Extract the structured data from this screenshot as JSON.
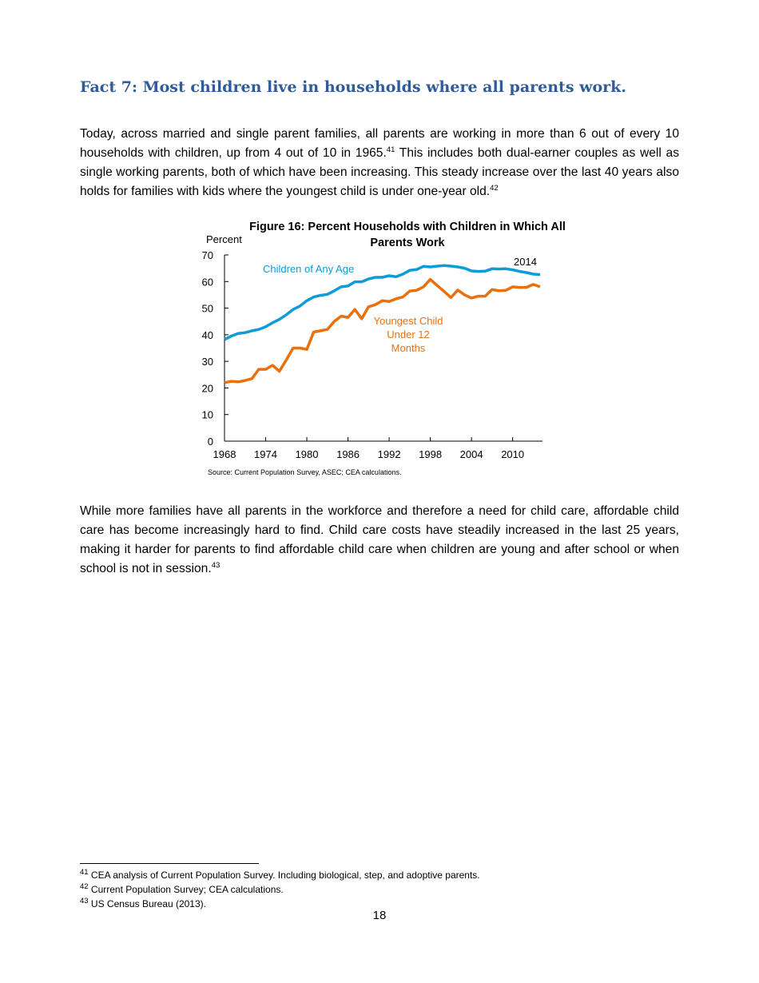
{
  "heading": "Fact 7: Most children live in households where all parents work.",
  "para1": {
    "text": "Today, across married and single parent families, all parents are working in more than 6 out of every 10 households with children, up from 4 out of 10 in 1965.",
    "ref1": "41",
    "text2": " This includes both dual-earner couples as well as single working parents, both of which have been increasing. This steady increase over the last 40 years also holds for families with kids where the youngest child is under one-year old.",
    "ref2": "42"
  },
  "para2": {
    "text": "While more families have all parents in the workforce and therefore a need for child care, affordable child care has become increasingly hard to find. Child care costs have steadily increased in the last 25 years, making it harder for parents to find affordable child care when children are young and after school or when school is not in session.",
    "ref": "43"
  },
  "chart_data": {
    "type": "line",
    "title": "Figure 16: Percent Households with Children in Which All Parents Work",
    "ylabel": "Percent",
    "ylim": [
      0,
      70
    ],
    "yticks": [
      0,
      10,
      20,
      30,
      40,
      50,
      60,
      70
    ],
    "xlim": [
      1968,
      2014
    ],
    "xticks": [
      1968,
      1974,
      1980,
      1986,
      1992,
      1998,
      2004,
      2010
    ],
    "x_start": 1968,
    "annotation": "2014",
    "series": [
      {
        "name": "Children of Any Age",
        "color": "#0f9ad8",
        "values": [
          38.2,
          39.5,
          40.5,
          40.8,
          41.5,
          42,
          43,
          44.5,
          45.8,
          47.5,
          49.5,
          50.8,
          52.8,
          54.2,
          54.8,
          55.2,
          56.5,
          58,
          58.3,
          59.9,
          59.9,
          61,
          61.6,
          61.6,
          62.2,
          61.8,
          62.8,
          64.2,
          64.5,
          65.7,
          65.5,
          65.8,
          66,
          65.8,
          65.5,
          65,
          64,
          63.8,
          63.9,
          64.8,
          64.7,
          64.8,
          64.4,
          63.8,
          63.4,
          62.8,
          62.6
        ]
      },
      {
        "name": "Youngest Child Under 12 Months",
        "name_lines": [
          "Youngest Child",
          "Under 12",
          "Months"
        ],
        "color": "#e8700f",
        "values": [
          22,
          22.5,
          22.3,
          22.8,
          23.5,
          27,
          27,
          28.5,
          26.3,
          30.5,
          35,
          35,
          34.5,
          41,
          41.5,
          42,
          45,
          47,
          46.5,
          49.5,
          46,
          50.5,
          51.3,
          52.8,
          52.5,
          53.5,
          54.2,
          56.4,
          56.7,
          58,
          60.8,
          58.5,
          56.3,
          54,
          56.8,
          55,
          53.8,
          54.5,
          54.5,
          57,
          56.5,
          56.7,
          58,
          57.8,
          57.8,
          58.9,
          58
        ]
      }
    ],
    "source": "Source: Current Population Survey, ASEC; CEA calculations."
  },
  "footnotes": [
    {
      "num": "41",
      "text": " CEA analysis of Current Population Survey. Including biological, step, and adoptive parents."
    },
    {
      "num": "42",
      "text": " Current Population Survey; CEA calculations."
    },
    {
      "num": "43",
      "text": " US Census Bureau (2013)."
    }
  ],
  "page_number": "18"
}
